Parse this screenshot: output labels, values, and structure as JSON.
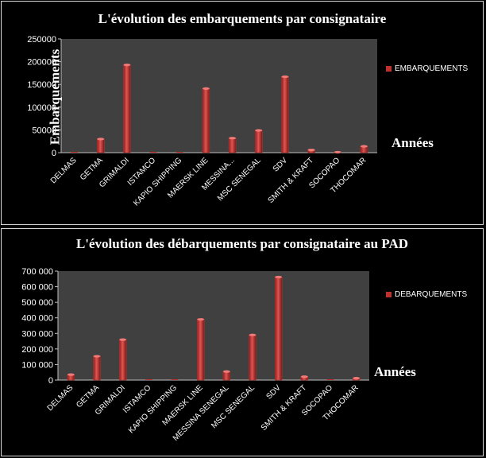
{
  "colors": {
    "background": "#000000",
    "plot_area": "#404040",
    "bar": "#c0302e",
    "text": "#ffffff"
  },
  "chart_data": [
    {
      "type": "bar",
      "title": "L'évolution des embarquements par consignataire",
      "xlabel": "Années",
      "ylabel": "Embarquements",
      "categories": [
        "DELMAS",
        "GETMA",
        "GRIMALDI",
        "ISTAMCO",
        "KAPIO SHIPPING",
        "MAERSK LINE",
        "MESSINA...",
        "MSC SENEGAL",
        "SDV",
        "SMITH & KRAFT",
        "SOCOPAO",
        "THOCOMAR"
      ],
      "series": [
        {
          "name": "EMBARQUEMENTS",
          "values": [
            0,
            30000,
            193000,
            0,
            0,
            141000,
            32000,
            49000,
            167000,
            6000,
            1000,
            14000
          ]
        }
      ],
      "ylim": [
        0,
        250000
      ],
      "yticks": [
        "0",
        "50000",
        "100000",
        "150000",
        "200000",
        "250000"
      ],
      "legend": "right",
      "grid": false
    },
    {
      "type": "bar",
      "title": "L'évolution des débarquements par consignataire au PAD",
      "xlabel": "Années",
      "ylabel": "",
      "categories": [
        "DELMAS",
        "GETMA",
        "GRIMALDI",
        "ISTAMCO",
        "KAPIO SHIPPING",
        "MAERSK LINE",
        "MESSINA SENEGAL",
        "MSC SENEGAL",
        "SDV",
        "SMITH & KRAFT",
        "SOCOPAO",
        "THOCOMAR"
      ],
      "series": [
        {
          "name": "DEBARQUEMENTS",
          "values": [
            35000,
            153000,
            260000,
            0,
            0,
            390000,
            55000,
            290000,
            662000,
            22000,
            0,
            12000
          ]
        }
      ],
      "ylim": [
        0,
        700000
      ],
      "yticks": [
        "0",
        "100 000",
        "200 000",
        "300 000",
        "400 000",
        "500 000",
        "600 000",
        "700 000"
      ],
      "legend": "right",
      "grid": false
    }
  ]
}
